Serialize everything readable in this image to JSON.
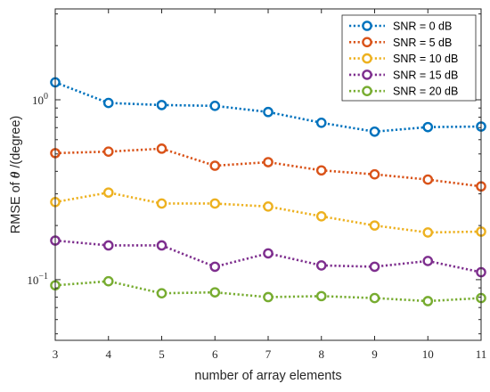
{
  "chart_data": {
    "type": "line",
    "title": "",
    "xlabel": "number of array elements",
    "ylabel_prefix": "RMSE of ",
    "ylabel_symbol": "θ",
    "ylabel_suffix": " /(degree)",
    "xlim": [
      3,
      11
    ],
    "ylim": [
      0.046,
      3.2
    ],
    "yscale": "log",
    "grid": false,
    "box": true,
    "legend_position": "top-right",
    "x": [
      3,
      4,
      5,
      6,
      7,
      8,
      9,
      10,
      11
    ],
    "x_tick_labels": [
      "3",
      "4",
      "5",
      "6",
      "7",
      "8",
      "9",
      "10",
      "11"
    ],
    "y_ticks": [
      {
        "value": 0.1,
        "base": "10",
        "exp": "−1"
      },
      {
        "value": 1,
        "base": "10",
        "exp": "0"
      }
    ],
    "series": [
      {
        "name": "SNR = 0 dB",
        "color": "#0072BD",
        "values": [
          1.25,
          0.96,
          0.935,
          0.925,
          0.855,
          0.745,
          0.665,
          0.705,
          0.71
        ]
      },
      {
        "name": "SNR = 5 dB",
        "color": "#D95319",
        "values": [
          0.505,
          0.515,
          0.535,
          0.43,
          0.45,
          0.405,
          0.385,
          0.36,
          0.33
        ]
      },
      {
        "name": "SNR = 10 dB",
        "color": "#EDB120",
        "values": [
          0.27,
          0.305,
          0.265,
          0.265,
          0.255,
          0.225,
          0.2,
          0.183,
          0.185
        ]
      },
      {
        "name": "SNR = 15 dB",
        "color": "#7E2F8E",
        "values": [
          0.165,
          0.155,
          0.155,
          0.118,
          0.14,
          0.12,
          0.118,
          0.127,
          0.11
        ]
      },
      {
        "name": "SNR = 20 dB",
        "color": "#77AC30",
        "values": [
          0.093,
          0.098,
          0.084,
          0.085,
          0.08,
          0.081,
          0.079,
          0.076,
          0.079
        ]
      }
    ]
  }
}
